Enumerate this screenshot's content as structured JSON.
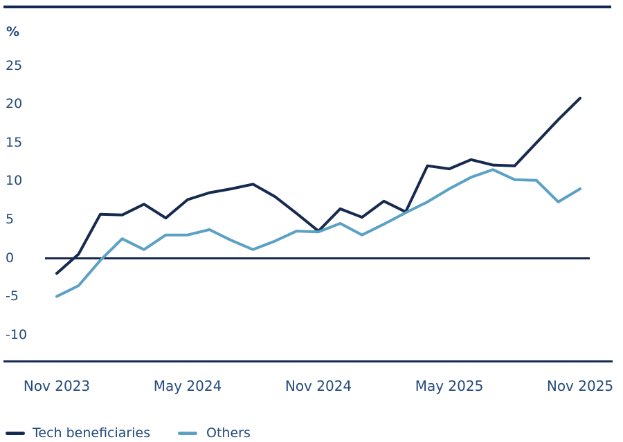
{
  "chart_data": {
    "type": "line",
    "title": "",
    "ylabel": "%",
    "xlabel": "",
    "ylim": [
      -10,
      25
    ],
    "grid": false,
    "zero_line": true,
    "legend_position": "bottom",
    "axis_color": "#16294f",
    "text_color": "#234a7d",
    "categories": [
      "Nov 2023",
      "Dec 2023",
      "Jan 2024",
      "Feb 2024",
      "Mar 2024",
      "Apr 2024",
      "May 2024",
      "Jun 2024",
      "Jul 2024",
      "Aug 2024",
      "Sep 2024",
      "Oct 2024",
      "Nov 2024",
      "Dec 2024",
      "Jan 2025",
      "Feb 2025",
      "Mar 2025",
      "Apr 2025",
      "May 2025",
      "Jun 2025",
      "Jul 2025",
      "Aug 2025",
      "Sep 2025",
      "Oct 2025",
      "Nov 2025"
    ],
    "series": [
      {
        "name": "Tech beneficiaries",
        "color": "#16294f",
        "values": [
          -2.0,
          0.5,
          5.7,
          5.6,
          7.0,
          5.2,
          7.6,
          8.5,
          9.0,
          9.6,
          8.0,
          5.8,
          3.5,
          6.4,
          5.3,
          7.4,
          6.0,
          12.0,
          11.6,
          12.8,
          12.1,
          12.0,
          15.0,
          18.0,
          20.8
        ]
      },
      {
        "name": "Others",
        "color": "#5ba1c5",
        "values": [
          -5.0,
          -3.6,
          -0.3,
          2.5,
          1.1,
          3.0,
          3.0,
          3.7,
          2.3,
          1.1,
          2.2,
          3.5,
          3.4,
          4.5,
          3.0,
          4.4,
          5.9,
          7.3,
          9.0,
          10.5,
          11.5,
          10.2,
          10.1,
          7.3,
          9.0
        ]
      }
    ],
    "yticks": [
      25,
      20,
      15,
      10,
      5,
      0,
      -5,
      -10
    ],
    "xticks": [
      {
        "label": "Nov 2023",
        "index": 0
      },
      {
        "label": "May 2024",
        "index": 6
      },
      {
        "label": "Nov 2024",
        "index": 12
      },
      {
        "label": "May 2025",
        "index": 18
      },
      {
        "label": "Nov 2025",
        "index": 24
      }
    ]
  }
}
